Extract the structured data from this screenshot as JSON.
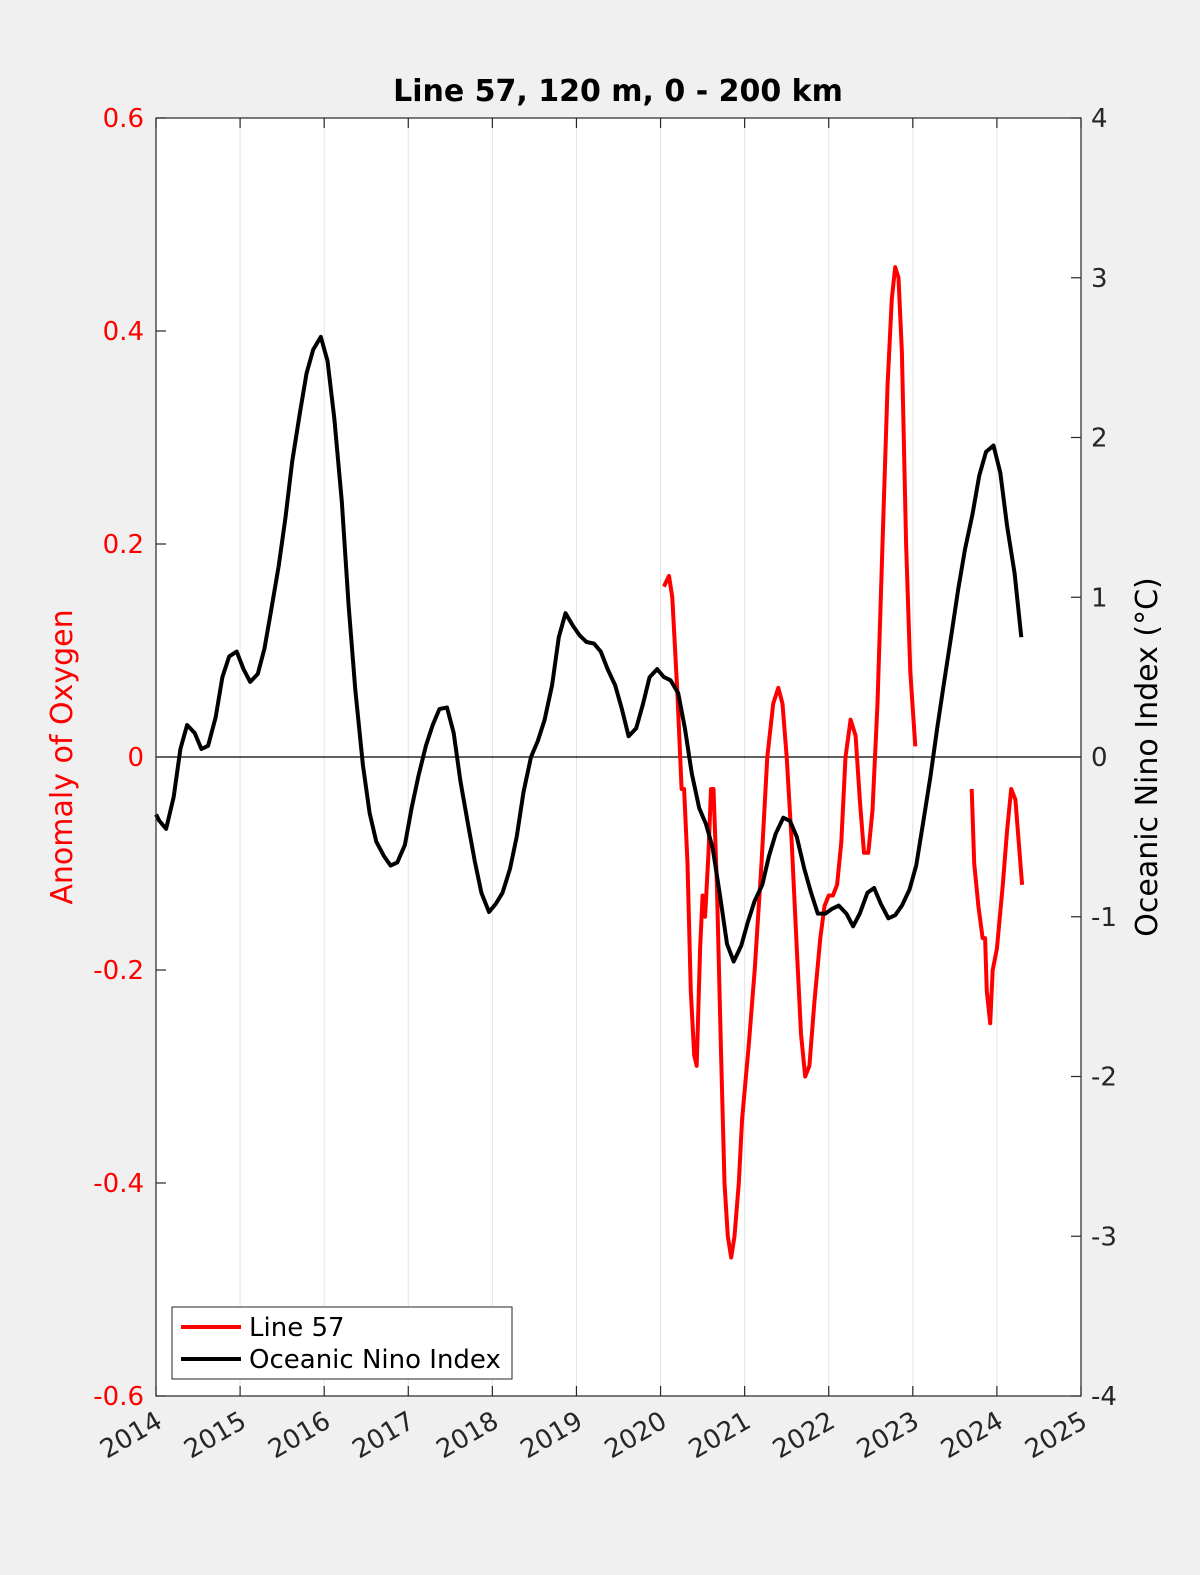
{
  "chart_data": {
    "type": "line",
    "title": "Line 57, 120 m, 0 - 200 km",
    "xlabel": "",
    "xlim": [
      2014,
      2025
    ],
    "x_ticks": [
      "2014",
      "2015",
      "2016",
      "2017",
      "2018",
      "2019",
      "2020",
      "2021",
      "2022",
      "2023",
      "2024",
      "2025"
    ],
    "ylabel_left": "Anomaly of Oxygen",
    "ylim_left": [
      -0.6,
      0.6
    ],
    "y_ticks_left": [
      "-0.6",
      "-0.4",
      "-0.2",
      "0",
      "0.2",
      "0.4",
      "0.6"
    ],
    "ylabel_right": "Oceanic Nino Index (°C)",
    "ylim_right": [
      -4,
      4
    ],
    "y_ticks_right": [
      "-4",
      "-3",
      "-2",
      "-1",
      "0",
      "1",
      "2",
      "3",
      "4"
    ],
    "grid": "vertical",
    "legend_position": "bottom-left",
    "colors": {
      "line57": "#ff0000",
      "oni": "#000000",
      "left_axis": "#ff0000",
      "background": "#f0f0f0",
      "axes": "#ffffff"
    },
    "series": [
      {
        "name": "Line 57",
        "axis": "left",
        "color": "#ff0000",
        "segments": [
          [
            [
              2020.04,
              0.16
            ],
            [
              2020.1,
              0.17
            ],
            [
              2020.14,
              0.15
            ],
            [
              2020.2,
              0.06
            ],
            [
              2020.25,
              -0.03
            ],
            [
              2020.28,
              -0.03
            ],
            [
              2020.32,
              -0.1
            ],
            [
              2020.36,
              -0.22
            ],
            [
              2020.4,
              -0.28
            ],
            [
              2020.43,
              -0.29
            ],
            [
              2020.47,
              -0.18
            ],
            [
              2020.5,
              -0.13
            ],
            [
              2020.53,
              -0.15
            ],
            [
              2020.57,
              -0.09
            ],
            [
              2020.6,
              -0.03
            ],
            [
              2020.63,
              -0.03
            ],
            [
              2020.67,
              -0.12
            ],
            [
              2020.72,
              -0.28
            ],
            [
              2020.76,
              -0.4
            ],
            [
              2020.8,
              -0.45
            ],
            [
              2020.84,
              -0.47
            ],
            [
              2020.88,
              -0.45
            ],
            [
              2020.93,
              -0.4
            ],
            [
              2020.97,
              -0.34
            ],
            [
              2021.05,
              -0.27
            ],
            [
              2021.12,
              -0.2
            ],
            [
              2021.2,
              -0.1
            ],
            [
              2021.27,
              0.0
            ],
            [
              2021.34,
              0.05
            ],
            [
              2021.4,
              0.065
            ],
            [
              2021.45,
              0.05
            ],
            [
              2021.5,
              0.0
            ],
            [
              2021.56,
              -0.08
            ],
            [
              2021.62,
              -0.18
            ],
            [
              2021.67,
              -0.26
            ],
            [
              2021.72,
              -0.3
            ],
            [
              2021.77,
              -0.29
            ],
            [
              2021.83,
              -0.23
            ],
            [
              2021.9,
              -0.17
            ],
            [
              2021.95,
              -0.14
            ],
            [
              2022.0,
              -0.13
            ],
            [
              2022.05,
              -0.13
            ],
            [
              2022.1,
              -0.12
            ],
            [
              2022.15,
              -0.08
            ],
            [
              2022.2,
              0.0
            ],
            [
              2022.26,
              0.035
            ],
            [
              2022.32,
              0.02
            ],
            [
              2022.37,
              -0.04
            ],
            [
              2022.42,
              -0.09
            ],
            [
              2022.47,
              -0.09
            ],
            [
              2022.52,
              -0.05
            ],
            [
              2022.58,
              0.05
            ],
            [
              2022.64,
              0.2
            ],
            [
              2022.7,
              0.35
            ],
            [
              2022.75,
              0.43
            ],
            [
              2022.79,
              0.46
            ],
            [
              2022.83,
              0.45
            ],
            [
              2022.87,
              0.38
            ],
            [
              2022.92,
              0.2
            ],
            [
              2022.97,
              0.08
            ],
            [
              2023.03,
              0.01
            ]
          ],
          [
            [
              2023.7,
              -0.03
            ],
            [
              2023.73,
              -0.1
            ],
            [
              2023.78,
              -0.14
            ],
            [
              2023.83,
              -0.17
            ],
            [
              2023.86,
              -0.17
            ],
            [
              2023.88,
              -0.22
            ],
            [
              2023.92,
              -0.25
            ],
            [
              2023.95,
              -0.2
            ],
            [
              2024.0,
              -0.18
            ],
            [
              2024.07,
              -0.12
            ],
            [
              2024.12,
              -0.07
            ],
            [
              2024.17,
              -0.03
            ],
            [
              2024.22,
              -0.04
            ],
            [
              2024.25,
              -0.07
            ],
            [
              2024.3,
              -0.12
            ]
          ]
        ]
      },
      {
        "name": "Oceanic Nino Index",
        "axis": "right",
        "color": "#000000",
        "points": [
          [
            2014.0,
            -0.36
          ],
          [
            2014.04,
            -0.4
          ],
          [
            2014.12,
            -0.45
          ],
          [
            2014.21,
            -0.25
          ],
          [
            2014.29,
            0.05
          ],
          [
            2014.37,
            0.2
          ],
          [
            2014.46,
            0.15
          ],
          [
            2014.54,
            0.05
          ],
          [
            2014.62,
            0.07
          ],
          [
            2014.71,
            0.25
          ],
          [
            2014.79,
            0.5
          ],
          [
            2014.87,
            0.63
          ],
          [
            2014.96,
            0.66
          ],
          [
            2015.04,
            0.55
          ],
          [
            2015.12,
            0.47
          ],
          [
            2015.21,
            0.52
          ],
          [
            2015.29,
            0.68
          ],
          [
            2015.37,
            0.92
          ],
          [
            2015.46,
            1.2
          ],
          [
            2015.54,
            1.5
          ],
          [
            2015.62,
            1.85
          ],
          [
            2015.71,
            2.15
          ],
          [
            2015.79,
            2.4
          ],
          [
            2015.87,
            2.55
          ],
          [
            2015.96,
            2.63
          ],
          [
            2016.04,
            2.48
          ],
          [
            2016.12,
            2.12
          ],
          [
            2016.21,
            1.6
          ],
          [
            2016.29,
            0.95
          ],
          [
            2016.37,
            0.42
          ],
          [
            2016.46,
            -0.05
          ],
          [
            2016.54,
            -0.35
          ],
          [
            2016.62,
            -0.53
          ],
          [
            2016.71,
            -0.62
          ],
          [
            2016.79,
            -0.68
          ],
          [
            2016.87,
            -0.66
          ],
          [
            2016.96,
            -0.55
          ],
          [
            2017.04,
            -0.32
          ],
          [
            2017.12,
            -0.12
          ],
          [
            2017.21,
            0.07
          ],
          [
            2017.29,
            0.2
          ],
          [
            2017.37,
            0.3
          ],
          [
            2017.46,
            0.31
          ],
          [
            2017.54,
            0.15
          ],
          [
            2017.62,
            -0.15
          ],
          [
            2017.71,
            -0.42
          ],
          [
            2017.79,
            -0.65
          ],
          [
            2017.87,
            -0.85
          ],
          [
            2017.96,
            -0.97
          ],
          [
            2018.04,
            -0.92
          ],
          [
            2018.12,
            -0.85
          ],
          [
            2018.21,
            -0.7
          ],
          [
            2018.29,
            -0.5
          ],
          [
            2018.37,
            -0.22
          ],
          [
            2018.46,
            0.0
          ],
          [
            2018.54,
            0.1
          ],
          [
            2018.62,
            0.23
          ],
          [
            2018.71,
            0.45
          ],
          [
            2018.79,
            0.75
          ],
          [
            2018.87,
            0.9
          ],
          [
            2018.96,
            0.82
          ],
          [
            2019.04,
            0.76
          ],
          [
            2019.12,
            0.72
          ],
          [
            2019.21,
            0.71
          ],
          [
            2019.29,
            0.66
          ],
          [
            2019.37,
            0.55
          ],
          [
            2019.46,
            0.45
          ],
          [
            2019.54,
            0.3
          ],
          [
            2019.62,
            0.13
          ],
          [
            2019.71,
            0.18
          ],
          [
            2019.79,
            0.33
          ],
          [
            2019.87,
            0.5
          ],
          [
            2019.96,
            0.55
          ],
          [
            2020.04,
            0.5
          ],
          [
            2020.12,
            0.48
          ],
          [
            2020.21,
            0.4
          ],
          [
            2020.29,
            0.18
          ],
          [
            2020.37,
            -0.1
          ],
          [
            2020.46,
            -0.32
          ],
          [
            2020.54,
            -0.42
          ],
          [
            2020.62,
            -0.57
          ],
          [
            2020.71,
            -0.88
          ],
          [
            2020.79,
            -1.17
          ],
          [
            2020.87,
            -1.28
          ],
          [
            2020.96,
            -1.18
          ],
          [
            2021.04,
            -1.03
          ],
          [
            2021.12,
            -0.9
          ],
          [
            2021.21,
            -0.8
          ],
          [
            2021.29,
            -0.62
          ],
          [
            2021.37,
            -0.48
          ],
          [
            2021.46,
            -0.38
          ],
          [
            2021.54,
            -0.4
          ],
          [
            2021.62,
            -0.5
          ],
          [
            2021.71,
            -0.7
          ],
          [
            2021.79,
            -0.85
          ],
          [
            2021.87,
            -0.98
          ],
          [
            2021.96,
            -0.98
          ],
          [
            2022.04,
            -0.95
          ],
          [
            2022.12,
            -0.93
          ],
          [
            2022.21,
            -0.98
          ],
          [
            2022.29,
            -1.06
          ],
          [
            2022.37,
            -0.98
          ],
          [
            2022.46,
            -0.85
          ],
          [
            2022.54,
            -0.82
          ],
          [
            2022.62,
            -0.92
          ],
          [
            2022.71,
            -1.01
          ],
          [
            2022.79,
            -0.99
          ],
          [
            2022.87,
            -0.93
          ],
          [
            2022.96,
            -0.83
          ],
          [
            2023.04,
            -0.68
          ],
          [
            2023.12,
            -0.42
          ],
          [
            2023.21,
            -0.12
          ],
          [
            2023.29,
            0.18
          ],
          [
            2023.37,
            0.46
          ],
          [
            2023.46,
            0.77
          ],
          [
            2023.54,
            1.05
          ],
          [
            2023.62,
            1.3
          ],
          [
            2023.71,
            1.52
          ],
          [
            2023.79,
            1.76
          ],
          [
            2023.87,
            1.91
          ],
          [
            2023.96,
            1.95
          ],
          [
            2024.04,
            1.78
          ],
          [
            2024.12,
            1.45
          ],
          [
            2024.21,
            1.15
          ],
          [
            2024.29,
            0.75
          ]
        ]
      }
    ]
  },
  "legend": {
    "items": [
      {
        "label": "Line 57",
        "color": "#ff0000"
      },
      {
        "label": "Oceanic Nino Index",
        "color": "#000000"
      }
    ]
  }
}
